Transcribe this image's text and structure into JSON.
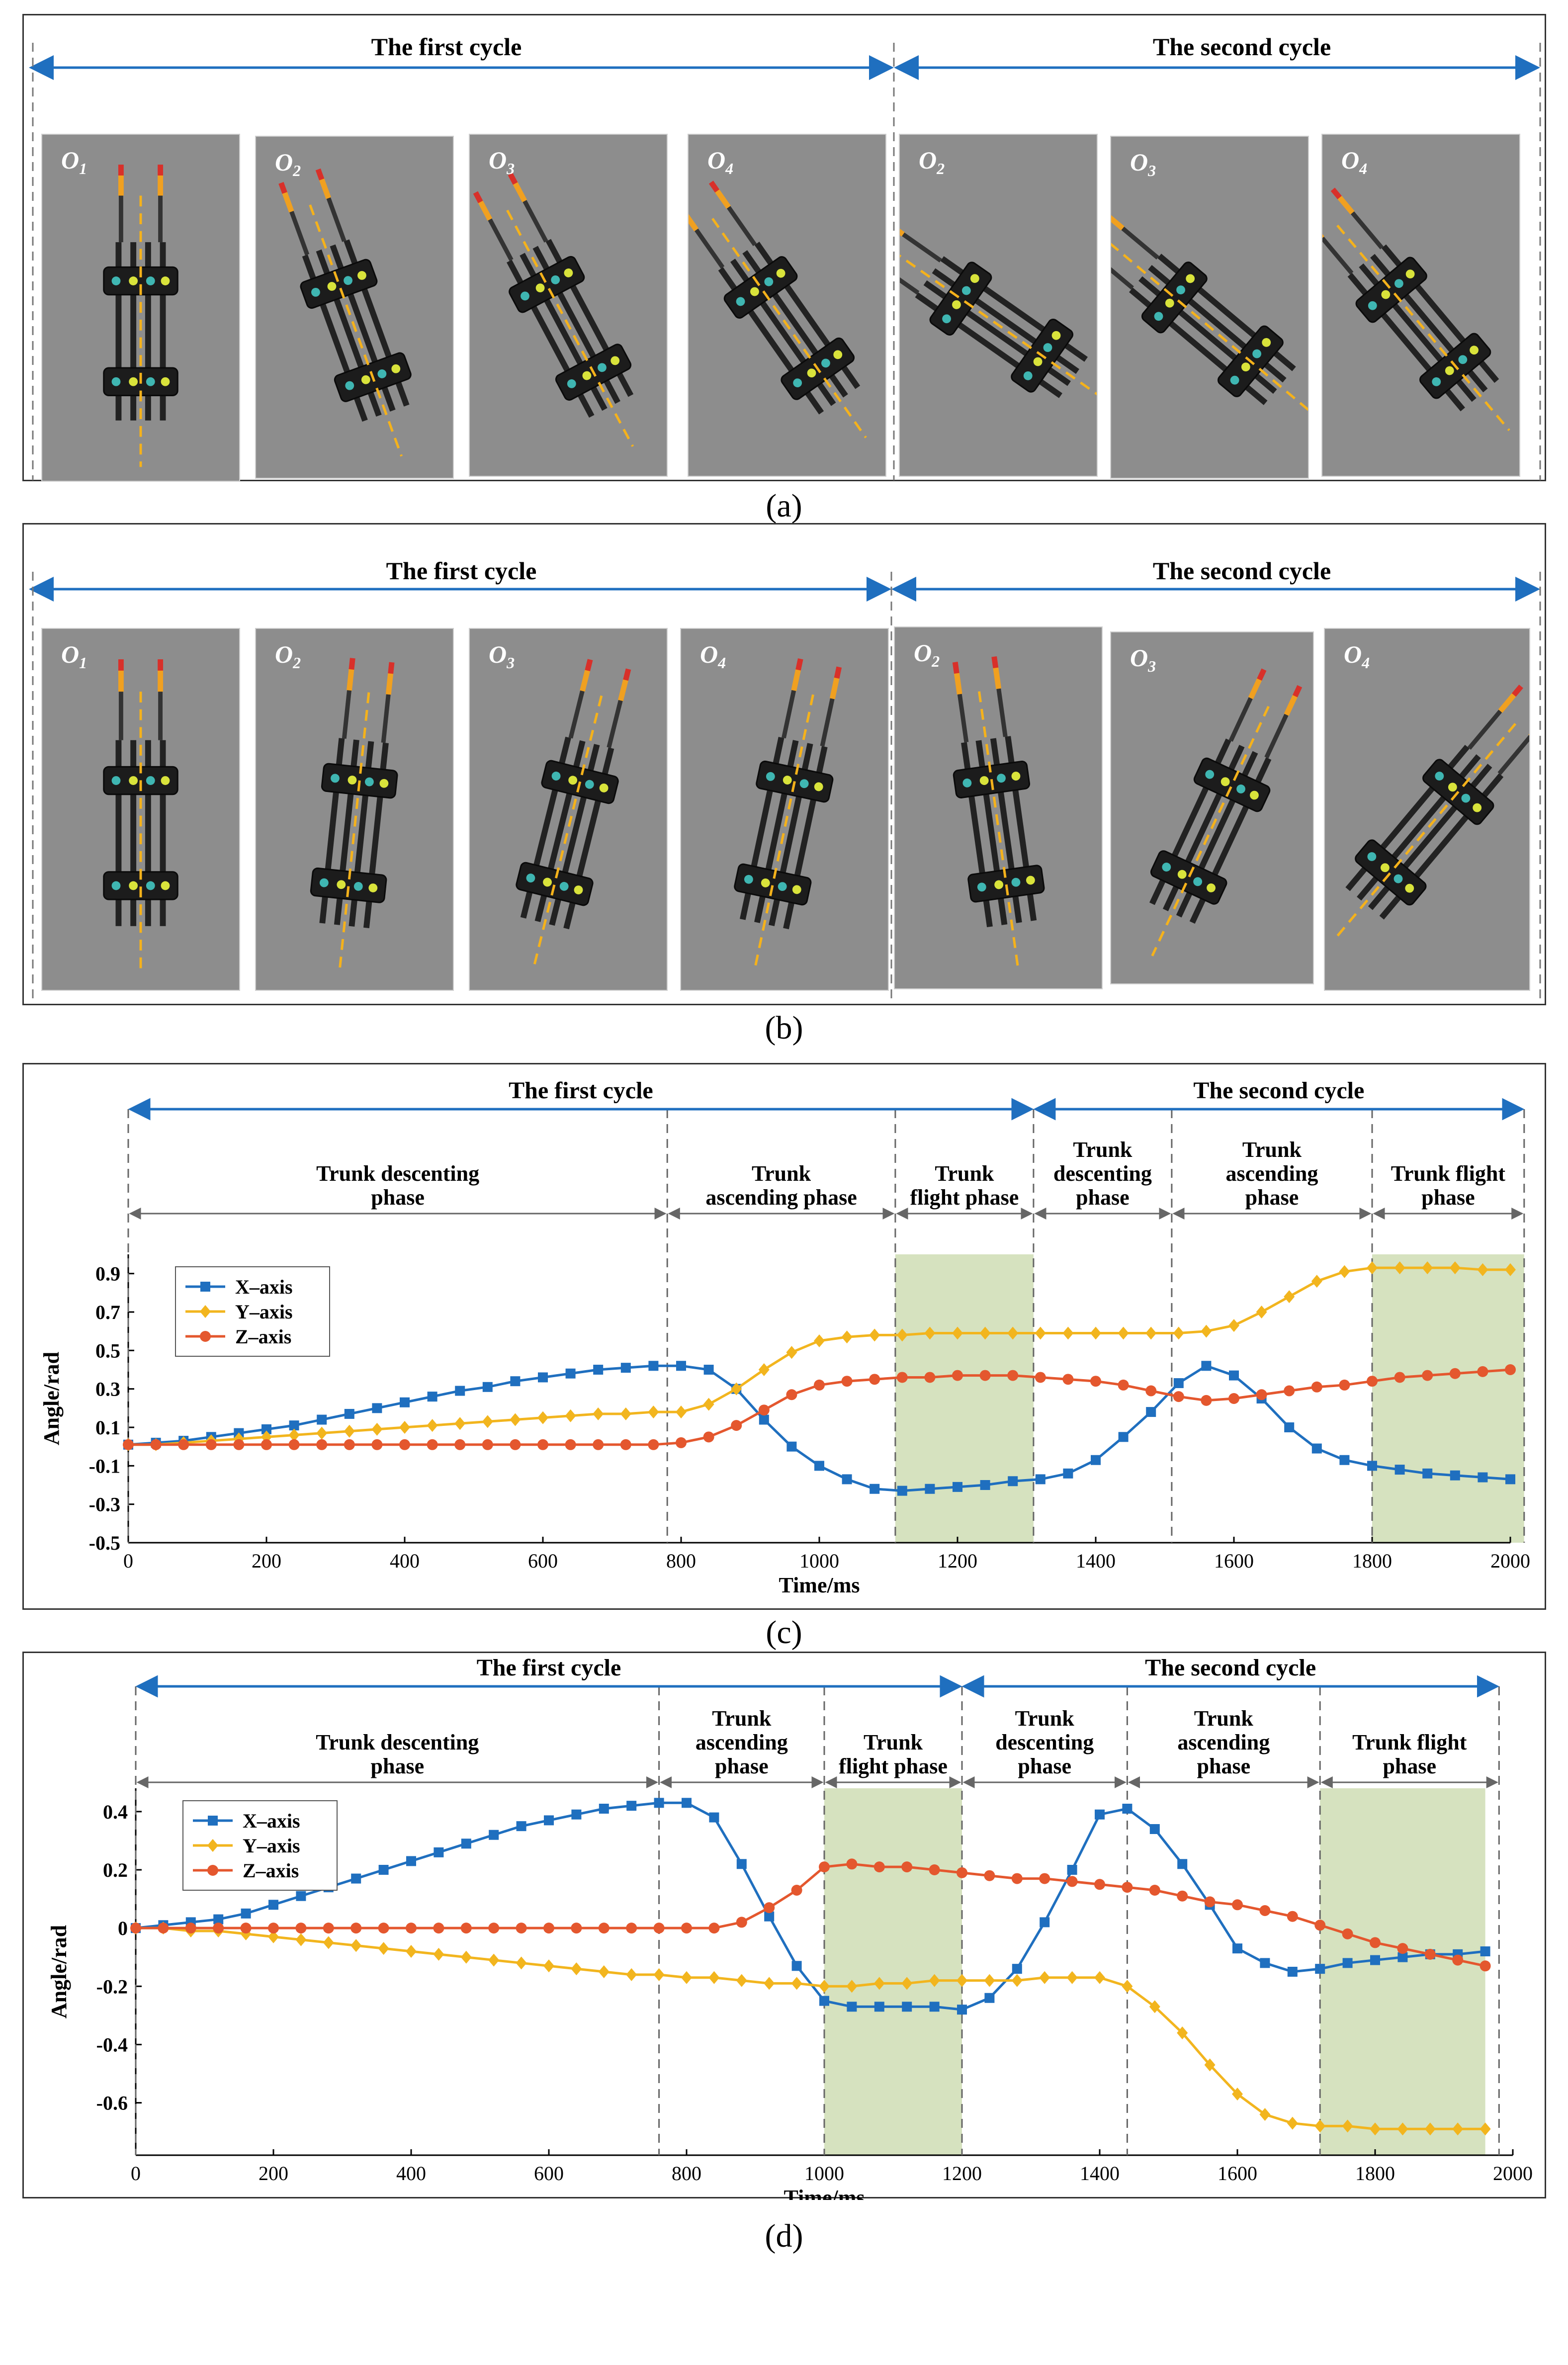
{
  "labels": {
    "a": "(a)",
    "b": "(b)",
    "c": "(c)",
    "d": "(d)"
  },
  "colors": {
    "arrow": "#1f6fbf",
    "x_axis": "#1f6fbf",
    "y_axis": "#f2b51e",
    "z_axis": "#e4572e",
    "flight_shade": "#d6e2bf",
    "frame_bg": "#8d8d8d",
    "trunk_dash": "#f5b21b"
  },
  "panel_a": {
    "cycles": [
      "The first cycle",
      "The second cycle"
    ],
    "frames": [
      {
        "label": "O",
        "sub": "1"
      },
      {
        "label": "O",
        "sub": "2"
      },
      {
        "label": "O",
        "sub": "3"
      },
      {
        "label": "O",
        "sub": "4"
      },
      {
        "label": "O",
        "sub": "2"
      },
      {
        "label": "O",
        "sub": "3"
      },
      {
        "label": "O",
        "sub": "4"
      }
    ]
  },
  "panel_b": {
    "cycles": [
      "The first cycle",
      "The second cycle"
    ],
    "frames": [
      {
        "label": "O",
        "sub": "1"
      },
      {
        "label": "O",
        "sub": "2"
      },
      {
        "label": "O",
        "sub": "3"
      },
      {
        "label": "O",
        "sub": "4"
      },
      {
        "label": "O",
        "sub": "2"
      },
      {
        "label": "O",
        "sub": "3"
      },
      {
        "label": "O",
        "sub": "4"
      }
    ]
  },
  "chart_data": [
    {
      "id": "c",
      "type": "line",
      "xlabel": "Time/ms",
      "ylabel": "Angle/rad",
      "xlim": [
        0,
        2000
      ],
      "ylim": [
        -0.5,
        1.0
      ],
      "xticks": [
        0,
        200,
        400,
        600,
        800,
        1000,
        1200,
        1400,
        1600,
        1800,
        2000
      ],
      "yticks": [
        -0.5,
        -0.3,
        -0.1,
        0.1,
        0.3,
        0.5,
        0.7,
        0.9
      ],
      "ytick_labels": [
        "-0.5",
        "-0.3",
        "-0.1",
        "0.1",
        "0.3",
        "0.5",
        "0.7",
        "0.9"
      ],
      "legend": [
        "X–axis",
        "Y–axis",
        "Z–axis"
      ],
      "legend_position": "top-left",
      "cycles": [
        {
          "label": "The first cycle",
          "start": 0,
          "end": 1310
        },
        {
          "label": "The second cycle",
          "start": 1310,
          "end": 2020
        }
      ],
      "phases": [
        {
          "lines": [
            "Trunk descenting",
            "phase"
          ],
          "start": 0,
          "end": 780
        },
        {
          "lines": [
            "Trunk",
            "ascending phase"
          ],
          "start": 780,
          "end": 1110
        },
        {
          "lines": [
            "Trunk",
            "flight phase"
          ],
          "start": 1110,
          "end": 1310
        },
        {
          "lines": [
            "Trunk",
            "descenting",
            "phase"
          ],
          "start": 1310,
          "end": 1510
        },
        {
          "lines": [
            "Trunk",
            "ascending",
            "phase"
          ],
          "start": 1510,
          "end": 1800
        },
        {
          "lines": [
            "Trunk flight",
            "phase"
          ],
          "start": 1800,
          "end": 2020
        }
      ],
      "shaded": [
        [
          1110,
          1310
        ],
        [
          1800,
          2020
        ]
      ],
      "x": [
        0,
        40,
        80,
        120,
        160,
        200,
        240,
        280,
        320,
        360,
        400,
        440,
        480,
        520,
        560,
        600,
        640,
        680,
        720,
        760,
        800,
        840,
        880,
        920,
        960,
        1000,
        1040,
        1080,
        1120,
        1160,
        1200,
        1240,
        1280,
        1320,
        1360,
        1400,
        1440,
        1480,
        1520,
        1560,
        1600,
        1640,
        1680,
        1720,
        1760,
        1800,
        1840,
        1880,
        1920,
        1960,
        2000
      ],
      "series": [
        {
          "name": "X–axis",
          "marker": "square",
          "values": [
            0.01,
            0.02,
            0.03,
            0.05,
            0.07,
            0.09,
            0.11,
            0.14,
            0.17,
            0.2,
            0.23,
            0.26,
            0.29,
            0.31,
            0.34,
            0.36,
            0.38,
            0.4,
            0.41,
            0.42,
            0.42,
            0.4,
            0.3,
            0.14,
            0.0,
            -0.1,
            -0.17,
            -0.22,
            -0.23,
            -0.22,
            -0.21,
            -0.2,
            -0.18,
            -0.17,
            -0.14,
            -0.07,
            0.05,
            0.18,
            0.33,
            0.42,
            0.37,
            0.25,
            0.1,
            -0.01,
            -0.07,
            -0.1,
            -0.12,
            -0.14,
            -0.15,
            -0.16,
            -0.17
          ]
        },
        {
          "name": "Y–axis",
          "marker": "diamond",
          "values": [
            0.01,
            0.01,
            0.02,
            0.03,
            0.04,
            0.05,
            0.06,
            0.07,
            0.08,
            0.09,
            0.1,
            0.11,
            0.12,
            0.13,
            0.14,
            0.15,
            0.16,
            0.17,
            0.17,
            0.18,
            0.18,
            0.22,
            0.3,
            0.4,
            0.49,
            0.55,
            0.57,
            0.58,
            0.58,
            0.59,
            0.59,
            0.59,
            0.59,
            0.59,
            0.59,
            0.59,
            0.59,
            0.59,
            0.59,
            0.6,
            0.63,
            0.7,
            0.78,
            0.86,
            0.91,
            0.93,
            0.93,
            0.93,
            0.93,
            0.92,
            0.92
          ]
        },
        {
          "name": "Z–axis",
          "marker": "circle",
          "values": [
            0.01,
            0.01,
            0.01,
            0.01,
            0.01,
            0.01,
            0.01,
            0.01,
            0.01,
            0.01,
            0.01,
            0.01,
            0.01,
            0.01,
            0.01,
            0.01,
            0.01,
            0.01,
            0.01,
            0.01,
            0.02,
            0.05,
            0.11,
            0.19,
            0.27,
            0.32,
            0.34,
            0.35,
            0.36,
            0.36,
            0.37,
            0.37,
            0.37,
            0.36,
            0.35,
            0.34,
            0.32,
            0.29,
            0.26,
            0.24,
            0.25,
            0.27,
            0.29,
            0.31,
            0.32,
            0.34,
            0.36,
            0.37,
            0.38,
            0.39,
            0.4
          ]
        }
      ]
    },
    {
      "id": "d",
      "type": "line",
      "xlabel": "Time/ms",
      "ylabel": "Angle/rad",
      "xlim": [
        0,
        2000
      ],
      "ylim": [
        -0.78,
        0.48
      ],
      "xticks": [
        0,
        200,
        400,
        600,
        800,
        1000,
        1200,
        1400,
        1600,
        1800,
        2000
      ],
      "yticks": [
        -0.6,
        -0.4,
        -0.2,
        0,
        0.2,
        0.4
      ],
      "ytick_labels": [
        "-0.6",
        "-0.4",
        "-0.2",
        "0",
        "0.2",
        "0.4"
      ],
      "legend": [
        "X–axis",
        "Y–axis",
        "Z–axis"
      ],
      "legend_position": "top-left",
      "cycles": [
        {
          "label": "The first cycle",
          "start": 0,
          "end": 1200
        },
        {
          "label": "The second cycle",
          "start": 1200,
          "end": 1980
        }
      ],
      "phases": [
        {
          "lines": [
            "Trunk descenting",
            "phase"
          ],
          "start": 0,
          "end": 760
        },
        {
          "lines": [
            "Trunk",
            "ascending",
            "phase"
          ],
          "start": 760,
          "end": 1000
        },
        {
          "lines": [
            "Trunk",
            "flight phase"
          ],
          "start": 1000,
          "end": 1200
        },
        {
          "lines": [
            "Trunk",
            "descenting",
            "phase"
          ],
          "start": 1200,
          "end": 1440
        },
        {
          "lines": [
            "Trunk",
            "ascending",
            "phase"
          ],
          "start": 1440,
          "end": 1720
        },
        {
          "lines": [
            "Trunk flight",
            "phase"
          ],
          "start": 1720,
          "end": 1980
        }
      ],
      "shaded": [
        [
          1000,
          1200
        ],
        [
          1720,
          1960
        ]
      ],
      "x": [
        0,
        40,
        80,
        120,
        160,
        200,
        240,
        280,
        320,
        360,
        400,
        440,
        480,
        520,
        560,
        600,
        640,
        680,
        720,
        760,
        800,
        840,
        880,
        920,
        960,
        1000,
        1040,
        1080,
        1120,
        1160,
        1200,
        1240,
        1280,
        1320,
        1360,
        1400,
        1440,
        1480,
        1520,
        1560,
        1600,
        1640,
        1680,
        1720,
        1760,
        1800,
        1840,
        1880,
        1920,
        1960
      ],
      "series": [
        {
          "name": "X–axis",
          "marker": "square",
          "values": [
            0.0,
            0.01,
            0.02,
            0.03,
            0.05,
            0.08,
            0.11,
            0.14,
            0.17,
            0.2,
            0.23,
            0.26,
            0.29,
            0.32,
            0.35,
            0.37,
            0.39,
            0.41,
            0.42,
            0.43,
            0.43,
            0.38,
            0.22,
            0.04,
            -0.13,
            -0.25,
            -0.27,
            -0.27,
            -0.27,
            -0.27,
            -0.28,
            -0.24,
            -0.14,
            0.02,
            0.2,
            0.39,
            0.41,
            0.34,
            0.22,
            0.08,
            -0.07,
            -0.12,
            -0.15,
            -0.14,
            -0.12,
            -0.11,
            -0.1,
            -0.09,
            -0.09,
            -0.08
          ]
        },
        {
          "name": "Y–axis",
          "marker": "diamond",
          "values": [
            0.0,
            0.0,
            -0.01,
            -0.01,
            -0.02,
            -0.03,
            -0.04,
            -0.05,
            -0.06,
            -0.07,
            -0.08,
            -0.09,
            -0.1,
            -0.11,
            -0.12,
            -0.13,
            -0.14,
            -0.15,
            -0.16,
            -0.16,
            -0.17,
            -0.17,
            -0.18,
            -0.19,
            -0.19,
            -0.2,
            -0.2,
            -0.19,
            -0.19,
            -0.18,
            -0.18,
            -0.18,
            -0.18,
            -0.17,
            -0.17,
            -0.17,
            -0.2,
            -0.27,
            -0.36,
            -0.47,
            -0.57,
            -0.64,
            -0.67,
            -0.68,
            -0.68,
            -0.69,
            -0.69,
            -0.69,
            -0.69,
            -0.69
          ]
        },
        {
          "name": "Z–axis",
          "marker": "circle",
          "values": [
            0.0,
            0.0,
            0.0,
            0.0,
            0.0,
            0.0,
            0.0,
            0.0,
            0.0,
            0.0,
            0.0,
            0.0,
            0.0,
            0.0,
            0.0,
            0.0,
            0.0,
            0.0,
            0.0,
            0.0,
            0.0,
            0.0,
            0.02,
            0.07,
            0.13,
            0.21,
            0.22,
            0.21,
            0.21,
            0.2,
            0.19,
            0.18,
            0.17,
            0.17,
            0.16,
            0.15,
            0.14,
            0.13,
            0.11,
            0.09,
            0.08,
            0.06,
            0.04,
            0.01,
            -0.02,
            -0.05,
            -0.07,
            -0.09,
            -0.11,
            -0.13
          ]
        }
      ]
    }
  ]
}
